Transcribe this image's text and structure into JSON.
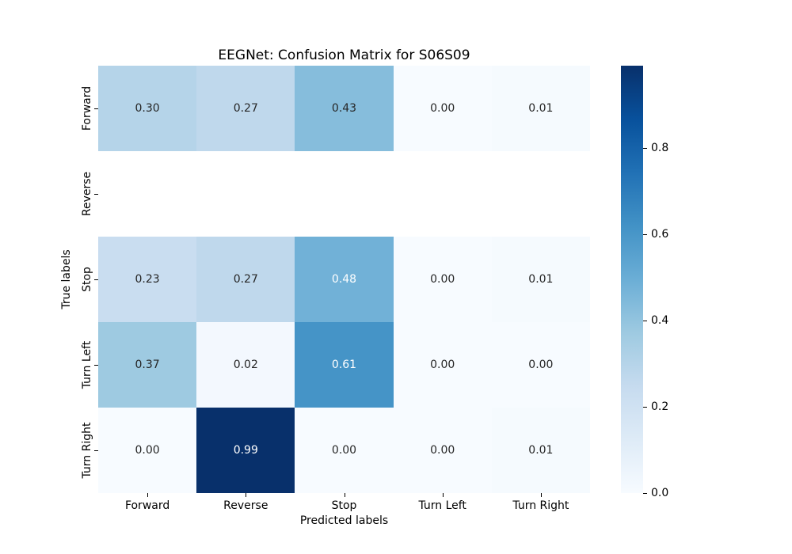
{
  "title": "EEGNet: Confusion Matrix for S06S09",
  "chart_data": {
    "type": "heatmap",
    "title": "EEGNet: Confusion Matrix for S06S09",
    "xlabel": "Predicted labels",
    "ylabel": "True labels",
    "x_categories": [
      "Forward",
      "Reverse",
      "Stop",
      "Turn Left",
      "Turn Right"
    ],
    "y_categories": [
      "Forward",
      "Reverse",
      "Stop",
      "Turn Left",
      "Turn Right"
    ],
    "matrix": [
      [
        0.3,
        0.27,
        0.43,
        0.0,
        0.01
      ],
      [
        null,
        null,
        null,
        null,
        null
      ],
      [
        0.23,
        0.27,
        0.48,
        0.0,
        0.01
      ],
      [
        0.37,
        0.02,
        0.61,
        0.0,
        0.0
      ],
      [
        0.0,
        0.99,
        0.0,
        0.0,
        0.01
      ]
    ],
    "value_format": "0.00",
    "colormap": "Blues",
    "vmin": 0.0,
    "vmax": 0.99,
    "grid": false,
    "legend_position": "right-colorbar",
    "colorbar_ticks": [
      {
        "value": 0.0,
        "label": "0.0"
      },
      {
        "value": 0.2,
        "label": "0.2"
      },
      {
        "value": 0.4,
        "label": "0.4"
      },
      {
        "value": 0.6,
        "label": "0.6"
      },
      {
        "value": 0.8,
        "label": "0.8"
      }
    ]
  },
  "colors": {
    "background": "#ffffff",
    "annotation_dark": "#262626",
    "annotation_light": "#ffffff",
    "tick_color": "#000000",
    "blues_stops": [
      "#f7fbff",
      "#deebf7",
      "#c6dbef",
      "#9ecae1",
      "#6baed6",
      "#4292c6",
      "#2171b5",
      "#08519c",
      "#08306b"
    ]
  }
}
